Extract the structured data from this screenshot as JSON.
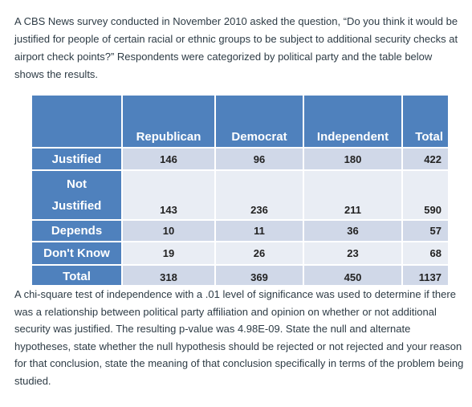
{
  "intro_text": "A CBS News survey conducted in November 2010 asked the question, “Do you think it would be justified for people of certain racial or ethnic groups to be subject to additional security checks at airport check points?” Respondents were categorized by political party and the table below shows the results.",
  "table": {
    "columns": [
      "Republican",
      "Democrat",
      "Independent",
      "Total"
    ],
    "rows": [
      {
        "label_line1": "Justified",
        "label_line2": "",
        "values": [
          "146",
          "96",
          "180",
          "422"
        ]
      },
      {
        "label_line1": "Not",
        "label_line2": "Justified",
        "values": [
          "143",
          "236",
          "211",
          "590"
        ]
      },
      {
        "label_line1": "Depends",
        "label_line2": "",
        "values": [
          "10",
          "11",
          "36",
          "57"
        ]
      },
      {
        "label_line1": "Don't Know",
        "label_line2": "",
        "values": [
          "19",
          "26",
          "23",
          "68"
        ]
      },
      {
        "label_line1": "Total",
        "label_line2": "",
        "values": [
          "318",
          "369",
          "450",
          "1137"
        ]
      }
    ],
    "colors": {
      "header": "#4f81bd",
      "band_dark": "#d0d8e8",
      "band_light": "#e9edf4"
    }
  },
  "question_text": "A chi-square test of independence with a .01 level of significance was used to determine if there was a relationship between political party affiliation and opinion on whether or not additional security was justified. The resulting p-value was 4.98E-09. State the null and alternate hypotheses, state whether the null hypothesis should be rejected or not rejected and your reason for that conclusion, state the meaning of that conclusion specifically in terms of the problem being studied."
}
